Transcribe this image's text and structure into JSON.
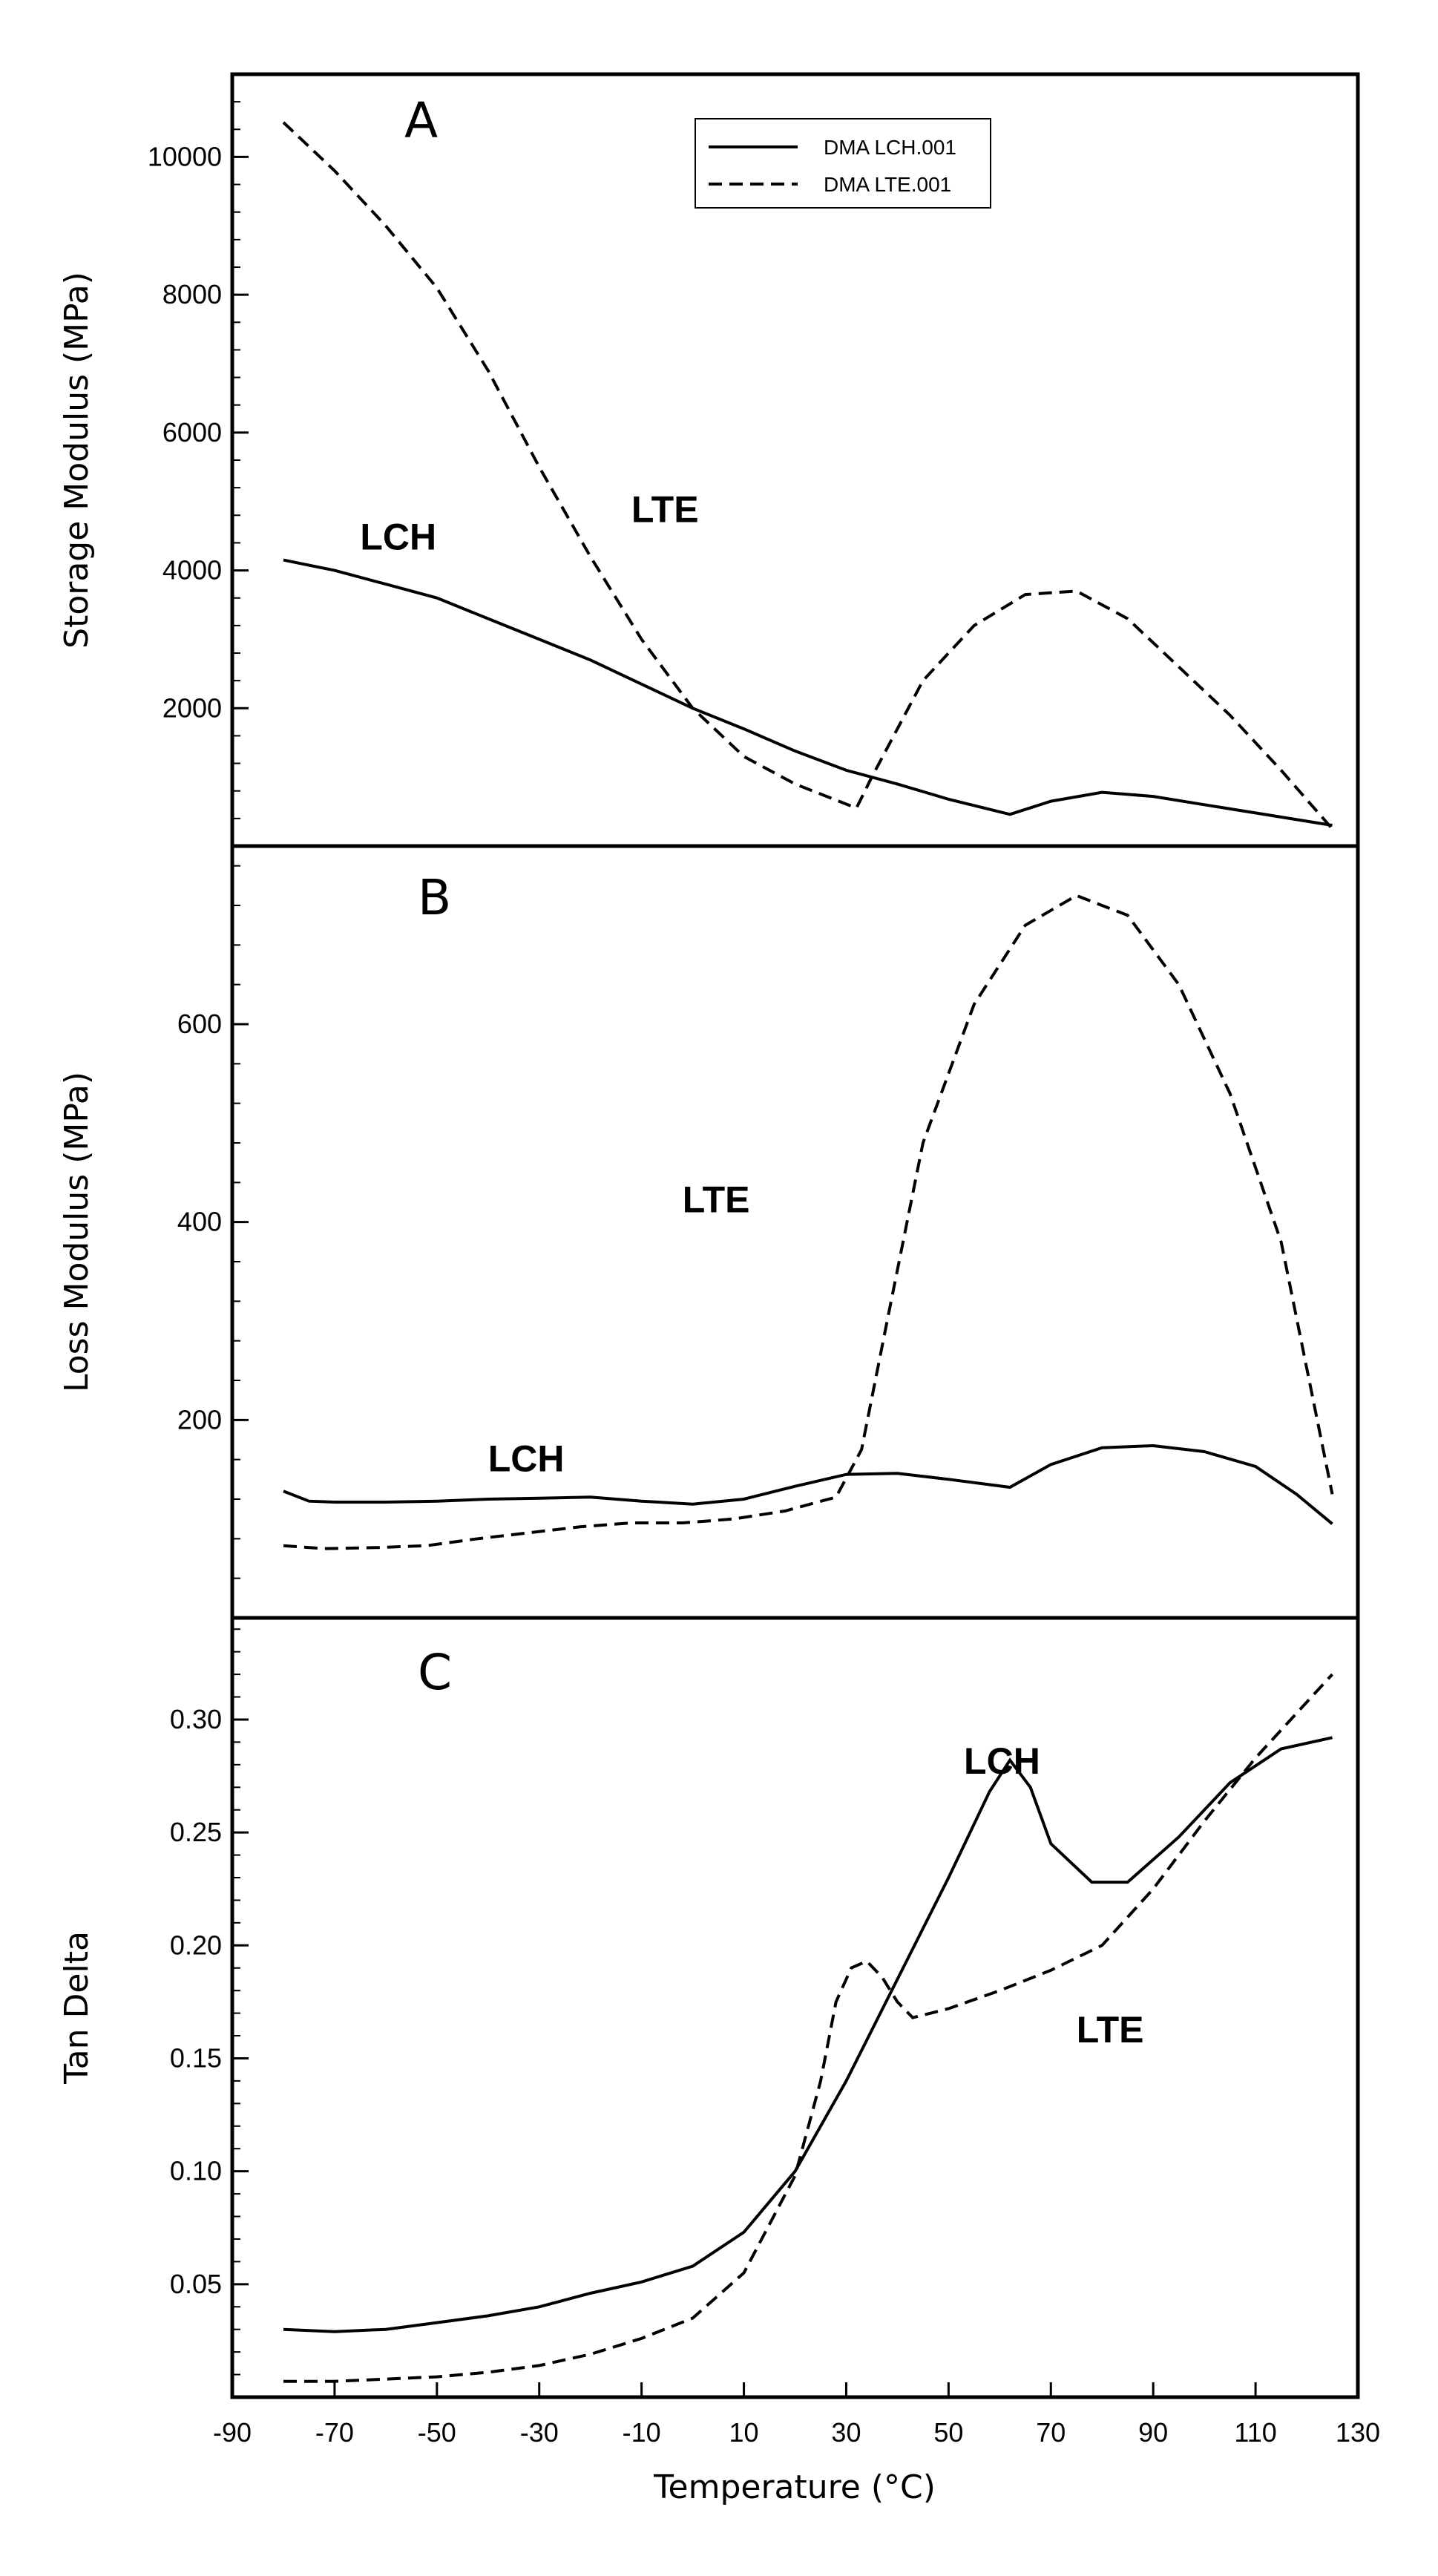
{
  "chart_data": [
    {
      "type": "line",
      "panel": "A",
      "title": "",
      "xlabel": "",
      "ylabel": "Storage Modulus (MPa)",
      "xlim": [
        -90,
        130
      ],
      "ylim": [
        0,
        11200
      ],
      "yticks": [
        2000,
        4000,
        6000,
        8000,
        10000
      ],
      "legend": {
        "position": "top-center",
        "entries": [
          "DMA LCH.001",
          "DMA LTE.001"
        ]
      },
      "series": [
        {
          "name": "DMA LCH.001",
          "style": "solid",
          "x": [
            -80,
            -70,
            -60,
            -50,
            -40,
            -30,
            -20,
            -10,
            0,
            10,
            20,
            30,
            40,
            50,
            62,
            70,
            80,
            90,
            100,
            110,
            125
          ],
          "y": [
            4150,
            4000,
            3800,
            3600,
            3300,
            3000,
            2700,
            2350,
            2000,
            1700,
            1380,
            1100,
            900,
            680,
            460,
            650,
            780,
            720,
            600,
            480,
            300
          ]
        },
        {
          "name": "DMA LTE.001",
          "style": "dashed",
          "x": [
            -80,
            -70,
            -60,
            -50,
            -40,
            -30,
            -20,
            -10,
            0,
            10,
            20,
            32,
            35,
            45,
            55,
            65,
            75,
            85,
            95,
            105,
            115,
            125
          ],
          "y": [
            10500,
            9800,
            9000,
            8100,
            6900,
            5500,
            4200,
            3000,
            2000,
            1300,
            900,
            550,
            1000,
            2400,
            3200,
            3650,
            3700,
            3300,
            2600,
            1900,
            1100,
            250
          ]
        }
      ],
      "annotations": [
        {
          "text": "LCH",
          "x": -65,
          "y": 4300
        },
        {
          "text": "LTE",
          "x": -12,
          "y": 4700
        }
      ]
    },
    {
      "type": "line",
      "panel": "B",
      "title": "",
      "xlabel": "",
      "ylabel": "Loss Modulus (MPa)",
      "xlim": [
        -90,
        130
      ],
      "ylim": [
        0,
        780
      ],
      "yticks": [
        200,
        400,
        600
      ],
      "series": [
        {
          "name": "DMA LCH.001",
          "style": "solid",
          "x": [
            -80,
            -75,
            -70,
            -60,
            -50,
            -40,
            -30,
            -20,
            -10,
            0,
            10,
            20,
            30,
            40,
            50,
            62,
            70,
            80,
            90,
            100,
            110,
            118,
            125
          ],
          "y": [
            128,
            118,
            117,
            117,
            118,
            120,
            121,
            122,
            118,
            115,
            120,
            133,
            145,
            146,
            140,
            132,
            155,
            172,
            174,
            168,
            153,
            125,
            95
          ]
        },
        {
          "name": "DMA LTE.001",
          "style": "dashed",
          "x": [
            -80,
            -72,
            -62,
            -52,
            -42,
            -32,
            -22,
            -12,
            -2,
            8,
            18,
            28,
            33,
            38,
            45,
            55,
            65,
            75,
            85,
            95,
            105,
            115,
            125
          ],
          "y": [
            73,
            70,
            71,
            73,
            80,
            86,
            92,
            96,
            96,
            100,
            108,
            122,
            170,
            300,
            480,
            620,
            700,
            730,
            710,
            640,
            530,
            380,
            125
          ]
        }
      ],
      "annotations": [
        {
          "text": "LCH",
          "x": -40,
          "y": 148
        },
        {
          "text": "LTE",
          "x": -2,
          "y": 410
        }
      ]
    },
    {
      "type": "line",
      "panel": "C",
      "title": "",
      "xlabel": "Temperature (°C)",
      "ylabel": "Tan Delta",
      "xlim": [
        -90,
        130
      ],
      "ylim": [
        0,
        0.345
      ],
      "xticks": [
        -90,
        -70,
        -50,
        -30,
        -10,
        10,
        30,
        50,
        70,
        90,
        110,
        130
      ],
      "yticks": [
        0.05,
        0.1,
        0.15,
        0.2,
        0.25,
        0.3
      ],
      "ytick_labels": [
        "0.05",
        "0.10",
        "0.15",
        "0.20",
        "0.25",
        "0.30"
      ],
      "series": [
        {
          "name": "DMA LCH.001",
          "style": "solid",
          "x": [
            -80,
            -70,
            -60,
            -50,
            -40,
            -30,
            -20,
            -10,
            0,
            10,
            20,
            30,
            40,
            50,
            58,
            62,
            66,
            70,
            78,
            85,
            95,
            105,
            115,
            125
          ],
          "y": [
            0.03,
            0.029,
            0.03,
            0.033,
            0.036,
            0.04,
            0.046,
            0.051,
            0.058,
            0.073,
            0.1,
            0.14,
            0.185,
            0.23,
            0.268,
            0.282,
            0.27,
            0.245,
            0.228,
            0.228,
            0.248,
            0.272,
            0.287,
            0.292
          ]
        },
        {
          "name": "DMA LTE.001",
          "style": "dashed",
          "x": [
            -80,
            -70,
            -60,
            -50,
            -40,
            -30,
            -20,
            -10,
            0,
            10,
            20,
            25,
            28,
            31,
            34,
            37,
            40,
            43,
            50,
            60,
            70,
            80,
            90,
            100,
            110,
            125
          ],
          "y": [
            0.007,
            0.007,
            0.008,
            0.009,
            0.011,
            0.014,
            0.019,
            0.026,
            0.035,
            0.055,
            0.098,
            0.14,
            0.175,
            0.19,
            0.193,
            0.186,
            0.175,
            0.168,
            0.172,
            0.18,
            0.189,
            0.2,
            0.225,
            0.255,
            0.283,
            0.32
          ]
        }
      ],
      "annotations": [
        {
          "text": "LCH",
          "x": 53,
          "y": 0.276
        },
        {
          "text": "LTE",
          "x": 75,
          "y": 0.157
        }
      ]
    }
  ]
}
